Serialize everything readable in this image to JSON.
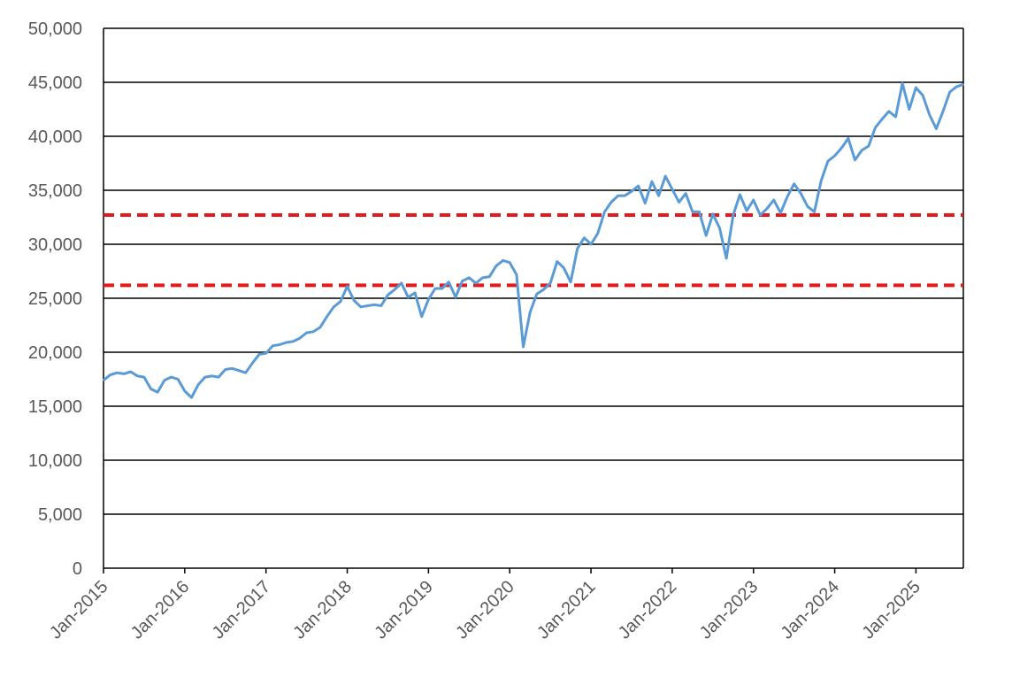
{
  "chart_data": {
    "type": "line",
    "title": "",
    "xlabel": "",
    "ylabel": "",
    "ylim": [
      0,
      50000
    ],
    "xlim": [
      "2015-01",
      "2025-08"
    ],
    "y_ticks": [
      "0",
      "5,000",
      "10,000",
      "15,000",
      "20,000",
      "25,000",
      "30,000",
      "35,000",
      "40,000",
      "45,000",
      "50,000"
    ],
    "y_tick_values": [
      0,
      5000,
      10000,
      15000,
      20000,
      25000,
      30000,
      35000,
      40000,
      45000,
      50000
    ],
    "x_tick_labels": [
      "Jan-2015",
      "Jan-2016",
      "Jan-2017",
      "Jan-2018",
      "Jan-2019",
      "Jan-2020",
      "Jan-2021",
      "Jan-2022",
      "Jan-2023",
      "Jan-2024",
      "Jan-2025"
    ],
    "x_tick_dates": [
      "2015-01",
      "2016-01",
      "2017-01",
      "2018-01",
      "2019-01",
      "2020-01",
      "2021-01",
      "2022-01",
      "2023-01",
      "2024-01",
      "2025-01"
    ],
    "gridlines": "horizontal",
    "legend": "none",
    "series": [
      {
        "color": "#5b9bd5",
        "points": [
          [
            "2015-01",
            17400
          ],
          [
            "2015-02",
            17900
          ],
          [
            "2015-03",
            18100
          ],
          [
            "2015-04",
            18000
          ],
          [
            "2015-05",
            18200
          ],
          [
            "2015-06",
            17800
          ],
          [
            "2015-07",
            17700
          ],
          [
            "2015-08",
            16600
          ],
          [
            "2015-09",
            16300
          ],
          [
            "2015-10",
            17400
          ],
          [
            "2015-11",
            17700
          ],
          [
            "2015-12",
            17500
          ],
          [
            "2016-01",
            16400
          ],
          [
            "2016-02",
            15800
          ],
          [
            "2016-03",
            17000
          ],
          [
            "2016-04",
            17700
          ],
          [
            "2016-05",
            17800
          ],
          [
            "2016-06",
            17700
          ],
          [
            "2016-07",
            18400
          ],
          [
            "2016-08",
            18500
          ],
          [
            "2016-09",
            18300
          ],
          [
            "2016-10",
            18100
          ],
          [
            "2016-11",
            19000
          ],
          [
            "2016-12",
            19800
          ],
          [
            "2017-01",
            19900
          ],
          [
            "2017-02",
            20600
          ],
          [
            "2017-03",
            20700
          ],
          [
            "2017-04",
            20900
          ],
          [
            "2017-05",
            21000
          ],
          [
            "2017-06",
            21300
          ],
          [
            "2017-07",
            21800
          ],
          [
            "2017-08",
            21900
          ],
          [
            "2017-09",
            22300
          ],
          [
            "2017-10",
            23300
          ],
          [
            "2017-11",
            24200
          ],
          [
            "2017-12",
            24700
          ],
          [
            "2018-01",
            26100
          ],
          [
            "2018-02",
            24800
          ],
          [
            "2018-03",
            24200
          ],
          [
            "2018-04",
            24300
          ],
          [
            "2018-05",
            24400
          ],
          [
            "2018-06",
            24300
          ],
          [
            "2018-07",
            25300
          ],
          [
            "2018-08",
            25800
          ],
          [
            "2018-09",
            26400
          ],
          [
            "2018-10",
            25100
          ],
          [
            "2018-11",
            25500
          ],
          [
            "2018-12",
            23300
          ],
          [
            "2019-01",
            24900
          ],
          [
            "2019-02",
            25900
          ],
          [
            "2019-03",
            25900
          ],
          [
            "2019-04",
            26500
          ],
          [
            "2019-05",
            25100
          ],
          [
            "2019-06",
            26600
          ],
          [
            "2019-07",
            26900
          ],
          [
            "2019-08",
            26400
          ],
          [
            "2019-09",
            26900
          ],
          [
            "2019-10",
            27000
          ],
          [
            "2019-11",
            28000
          ],
          [
            "2019-12",
            28500
          ],
          [
            "2020-01",
            28300
          ],
          [
            "2020-02",
            27200
          ],
          [
            "2020-03",
            20500
          ],
          [
            "2020-04",
            23700
          ],
          [
            "2020-05",
            25400
          ],
          [
            "2020-06",
            25800
          ],
          [
            "2020-07",
            26400
          ],
          [
            "2020-08",
            28400
          ],
          [
            "2020-09",
            27800
          ],
          [
            "2020-10",
            26500
          ],
          [
            "2020-11",
            29600
          ],
          [
            "2020-12",
            30600
          ],
          [
            "2021-01",
            30000
          ],
          [
            "2021-02",
            31000
          ],
          [
            "2021-03",
            33000
          ],
          [
            "2021-04",
            33900
          ],
          [
            "2021-05",
            34500
          ],
          [
            "2021-06",
            34500
          ],
          [
            "2021-07",
            34900
          ],
          [
            "2021-08",
            35400
          ],
          [
            "2021-09",
            33800
          ],
          [
            "2021-10",
            35800
          ],
          [
            "2021-11",
            34500
          ],
          [
            "2021-12",
            36300
          ],
          [
            "2022-01",
            35100
          ],
          [
            "2022-02",
            33900
          ],
          [
            "2022-03",
            34700
          ],
          [
            "2022-04",
            33000
          ],
          [
            "2022-05",
            33000
          ],
          [
            "2022-06",
            30800
          ],
          [
            "2022-07",
            32800
          ],
          [
            "2022-08",
            31500
          ],
          [
            "2022-09",
            28700
          ],
          [
            "2022-10",
            32700
          ],
          [
            "2022-11",
            34600
          ],
          [
            "2022-12",
            33100
          ],
          [
            "2023-01",
            34100
          ],
          [
            "2023-02",
            32700
          ],
          [
            "2023-03",
            33300
          ],
          [
            "2023-04",
            34100
          ],
          [
            "2023-05",
            32900
          ],
          [
            "2023-06",
            34400
          ],
          [
            "2023-07",
            35600
          ],
          [
            "2023-08",
            34700
          ],
          [
            "2023-09",
            33500
          ],
          [
            "2023-10",
            33000
          ],
          [
            "2023-11",
            35900
          ],
          [
            "2023-12",
            37700
          ],
          [
            "2024-01",
            38200
          ],
          [
            "2024-02",
            38900
          ],
          [
            "2024-03",
            39800
          ],
          [
            "2024-04",
            37800
          ],
          [
            "2024-05",
            38700
          ],
          [
            "2024-06",
            39100
          ],
          [
            "2024-07",
            40800
          ],
          [
            "2024-08",
            41600
          ],
          [
            "2024-09",
            42300
          ],
          [
            "2024-10",
            41800
          ],
          [
            "2024-11",
            44900
          ],
          [
            "2024-12",
            42500
          ],
          [
            "2025-01",
            44500
          ],
          [
            "2025-02",
            43800
          ],
          [
            "2025-03",
            42000
          ],
          [
            "2025-04",
            40700
          ],
          [
            "2025-05",
            42300
          ],
          [
            "2025-06",
            44100
          ],
          [
            "2025-07",
            44600
          ],
          [
            "2025-08",
            44800
          ]
        ]
      }
    ],
    "reference_lines": [
      {
        "value": 32700,
        "color": "#e31a1c",
        "style": "dashed"
      },
      {
        "value": 26200,
        "color": "#e31a1c",
        "style": "dashed"
      }
    ],
    "colors": {
      "line": "#5b9bd5",
      "grid": "#000000",
      "reference": "#e31a1c",
      "tick_text": "#595959"
    }
  }
}
